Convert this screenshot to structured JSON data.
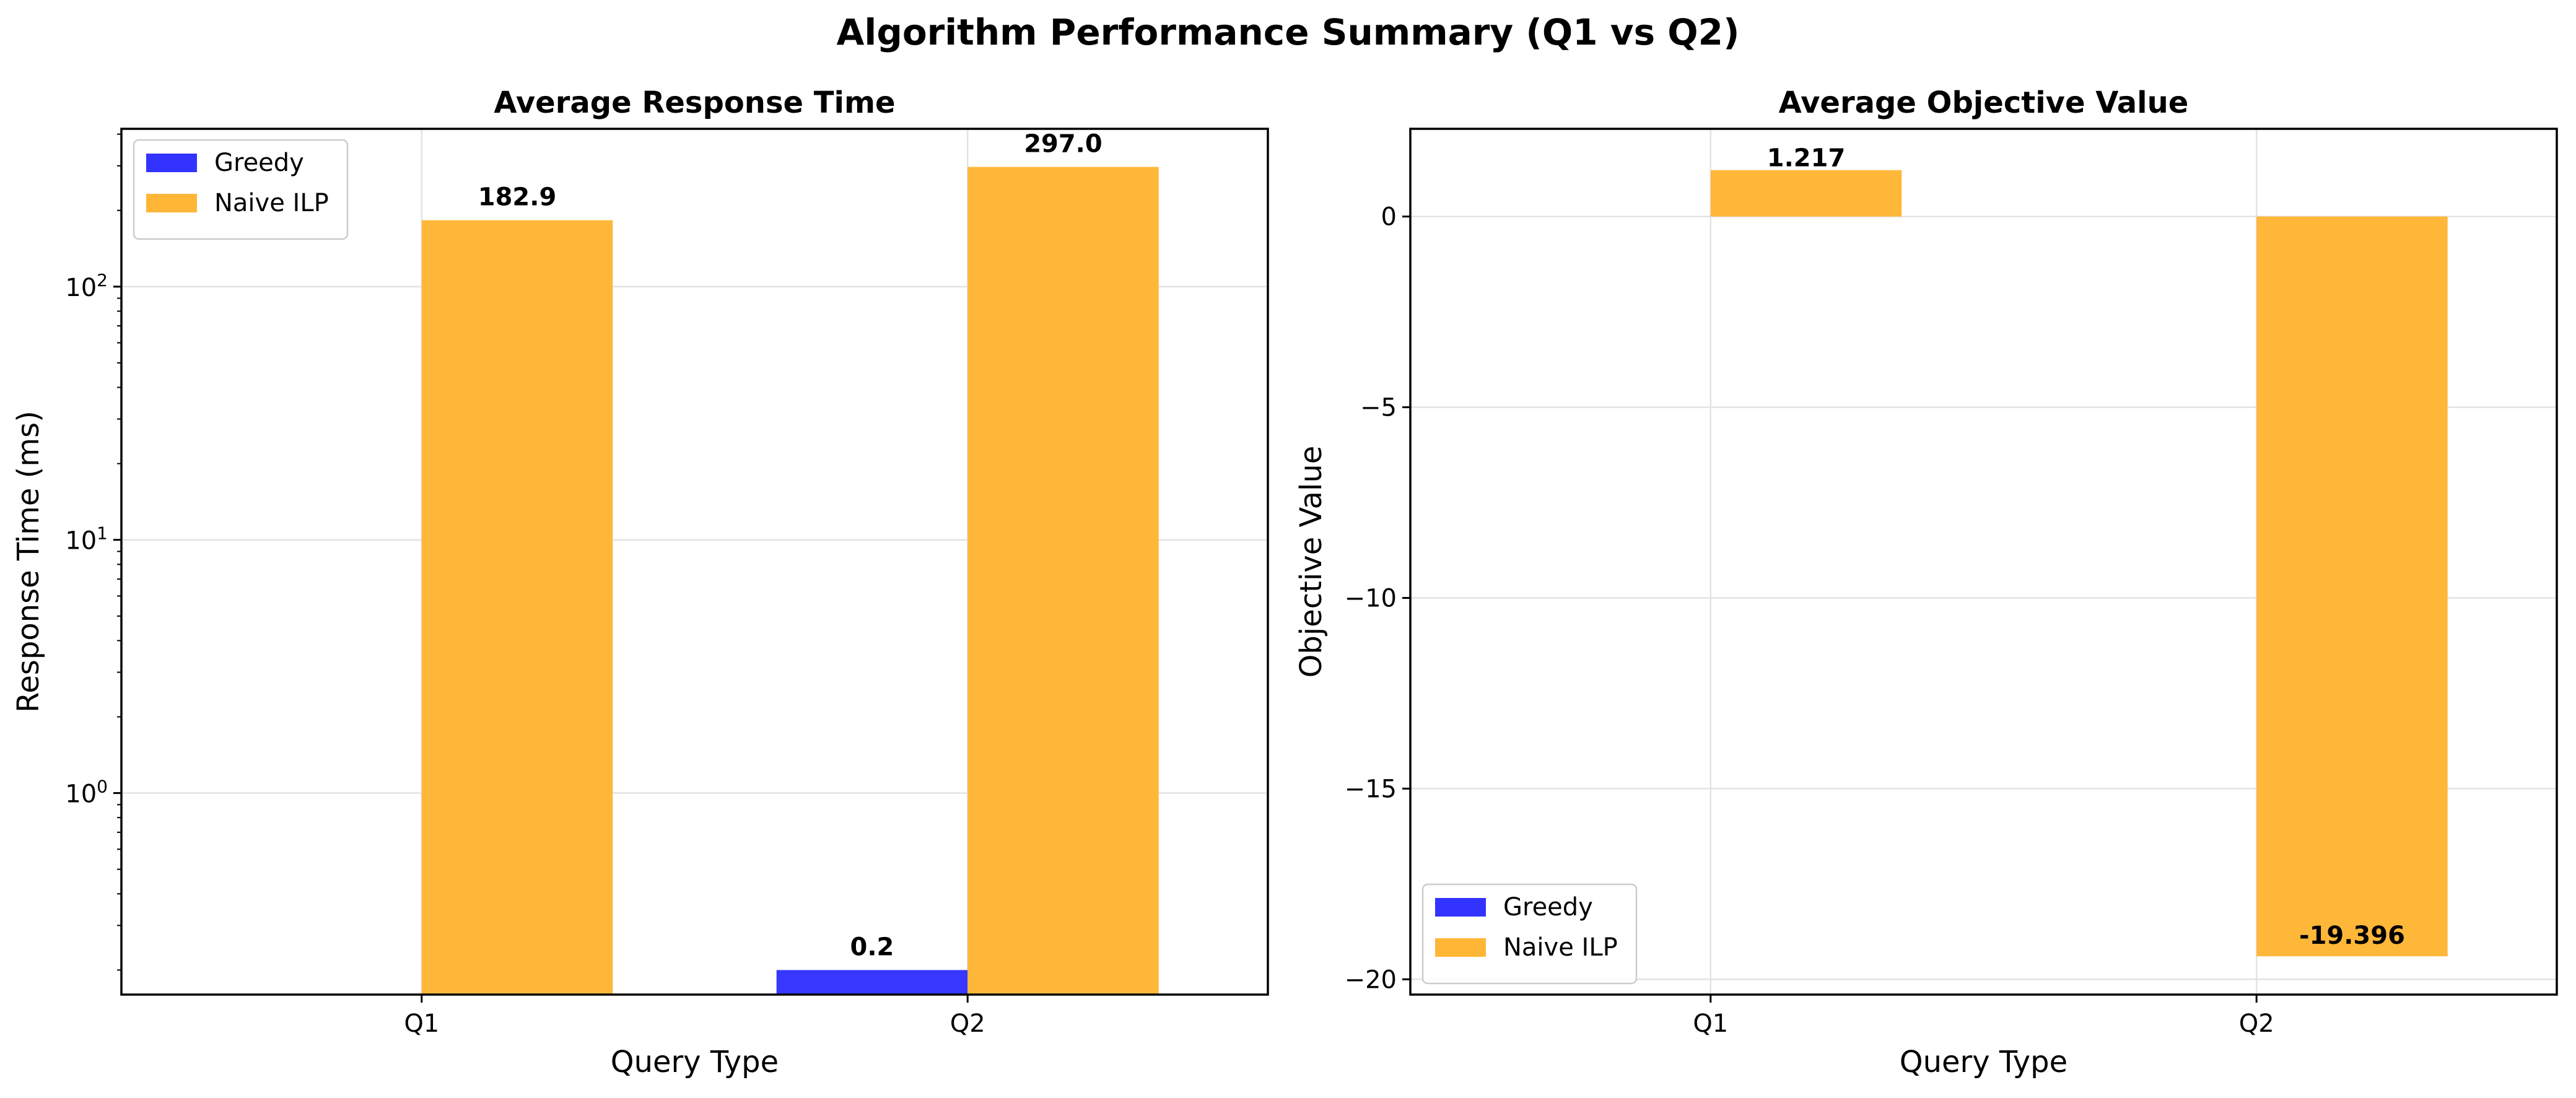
{
  "figure": {
    "title": "Algorithm Performance Summary (Q1 vs Q2)"
  },
  "colors": {
    "greedy": "#3333ff",
    "naive_ilp": "#ffb636",
    "grid": "#e3e3e3",
    "axis": "#000000"
  },
  "chart_data": [
    {
      "type": "bar",
      "title": "Average Response Time",
      "xlabel": "Query Type",
      "ylabel": "Response Time (ms)",
      "yscale": "log",
      "ylim": [
        0.16,
        420
      ],
      "categories": [
        "Q1",
        "Q2"
      ],
      "yticks": [
        {
          "value": 1,
          "base": "10",
          "exp": "0"
        },
        {
          "value": 10,
          "base": "10",
          "exp": "1"
        },
        {
          "value": 100,
          "base": "10",
          "exp": "2"
        }
      ],
      "series": [
        {
          "name": "Greedy",
          "values": [
            0.0,
            0.2
          ],
          "labels": [
            "",
            "0.2"
          ]
        },
        {
          "name": "Naive ILP",
          "values": [
            182.9,
            297.0
          ],
          "labels": [
            "182.9",
            "297.0"
          ]
        }
      ],
      "legend": "upper-left",
      "grid": true
    },
    {
      "type": "bar",
      "title": "Average Objective Value",
      "xlabel": "Query Type",
      "ylabel": "Objective Value",
      "yscale": "linear",
      "ylim": [
        -20.4,
        2.3
      ],
      "categories": [
        "Q1",
        "Q2"
      ],
      "yticks": [
        {
          "value": 0,
          "label": "0"
        },
        {
          "value": -5,
          "label": "−5"
        },
        {
          "value": -10,
          "label": "−10"
        },
        {
          "value": -15,
          "label": "−15"
        },
        {
          "value": -20,
          "label": "−20"
        }
      ],
      "series": [
        {
          "name": "Greedy",
          "values": [
            0.0,
            0.0
          ],
          "labels": [
            "",
            ""
          ]
        },
        {
          "name": "Naive ILP",
          "values": [
            1.217,
            -19.396
          ],
          "labels": [
            "1.217",
            "-19.396"
          ]
        }
      ],
      "legend": "lower-left",
      "grid": true
    }
  ]
}
